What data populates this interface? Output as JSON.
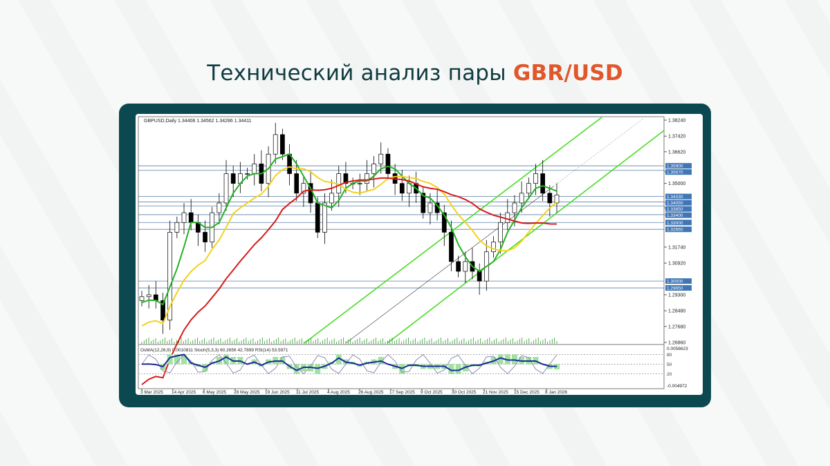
{
  "title": {
    "main": "Технический анализ пары",
    "accent": "GBR/USD",
    "accent_color": "#e0572a"
  },
  "frame_color": "#0b4850",
  "chart_data": {
    "type": "candlestick",
    "symbol_header": "GBPUSD,Daily  1.34408 1.34562 1.34286 1.34411",
    "ylim": [
      1.2686,
      1.3824
    ],
    "y_ticks": [
      "1.38240",
      "1.37420",
      "1.36620",
      "1.35000",
      "1.31740",
      "1.30920",
      "1.29300",
      "1.28480",
      "1.27680",
      "1.26860"
    ],
    "x_tick_labels": [
      "3 Mar 2025",
      "14 Apr 2025",
      "6 May 2025",
      "28 May 2025",
      "19 Jun 2025",
      "11 Jul 2025",
      "4 Aug 2025",
      "26 Aug 2025",
      "17 Sep 2025",
      "9 Oct 2025",
      "30 Oct 2025",
      "21 Nov 2025",
      "15 Dec 2025",
      "8 Jan 2026"
    ],
    "close": [
      1.292,
      1.293,
      1.29,
      1.28,
      1.325,
      1.33,
      1.335,
      1.33,
      1.325,
      1.32,
      1.335,
      1.34,
      1.355,
      1.35,
      1.355,
      1.355,
      1.36,
      1.35,
      1.365,
      1.375,
      1.365,
      1.355,
      1.345,
      1.35,
      1.34,
      1.325,
      1.34,
      1.345,
      1.355,
      1.35,
      1.35,
      1.35,
      1.355,
      1.36,
      1.365,
      1.355,
      1.35,
      1.345,
      1.35,
      1.345,
      1.335,
      1.34,
      1.335,
      1.325,
      1.31,
      1.305,
      1.31,
      1.305,
      1.3,
      1.315,
      1.32,
      1.33,
      1.335,
      1.34,
      1.345,
      1.35,
      1.355,
      1.345,
      1.34,
      1.3441
    ],
    "levels": [
      {
        "label": "1.35900",
        "value": 1.359
      },
      {
        "label": "1.35670",
        "value": 1.3567
      },
      {
        "label": "1.34330",
        "value": 1.3433
      },
      {
        "label": "1.34050",
        "value": 1.3405
      },
      {
        "label": "1.33850",
        "value": 1.3385
      },
      {
        "label": "1.33400",
        "value": 1.334
      },
      {
        "label": "1.33000",
        "value": 1.33
      },
      {
        "label": "1.32650",
        "value": 1.3265
      },
      {
        "label": "1.30000",
        "value": 1.3
      },
      {
        "label": "1.29650",
        "value": 1.2965
      }
    ],
    "moving_averages": [
      {
        "color": "#22b022"
      },
      {
        "color": "#f2d21a"
      },
      {
        "color": "#d81818"
      }
    ],
    "channel_color": "#44dd22",
    "oscillator": {
      "header": "OsMA(12,26,9) 0.0010811  Stoch(5,3,3) 60.2656 42.7899  RSI(14) 53.5971",
      "max_label": "0.0058623",
      "min_label": "-0.004972",
      "levels": [
        "80",
        "50",
        "20"
      ]
    }
  }
}
